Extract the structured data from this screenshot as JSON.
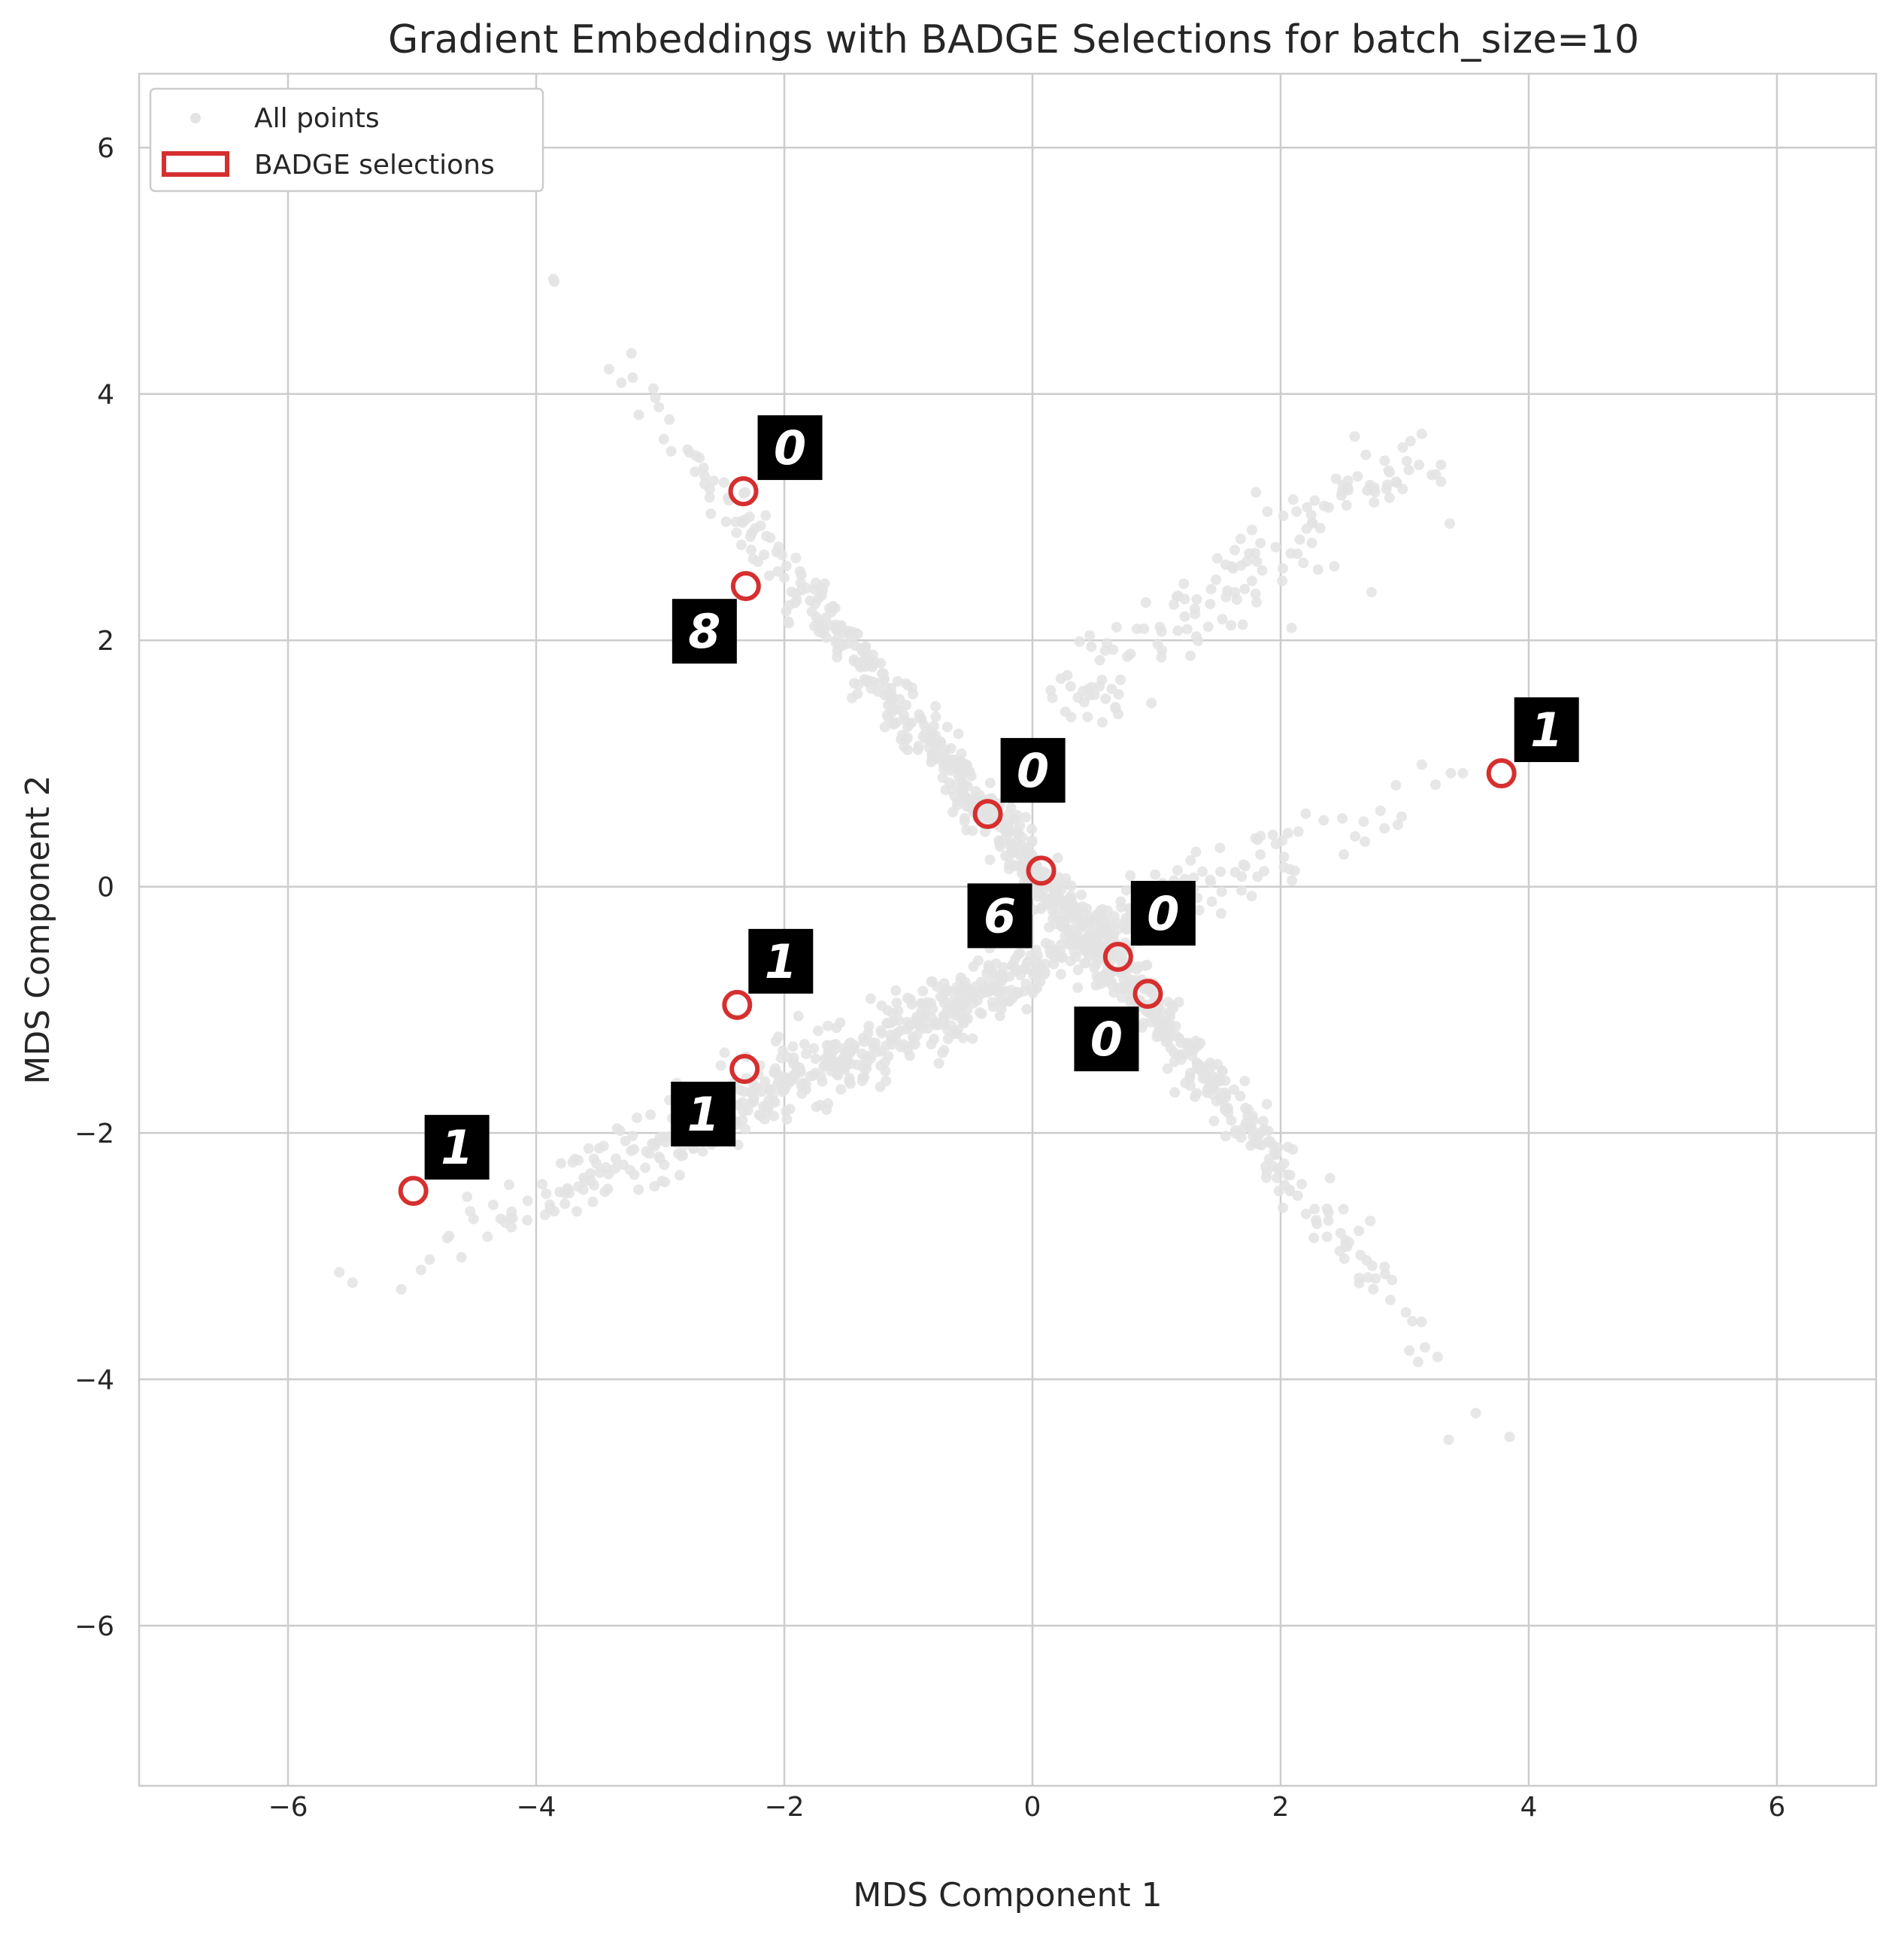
{
  "chart_data": {
    "type": "scatter",
    "title": "Gradient Embeddings with BADGE Selections for batch_size=10",
    "xlabel": "MDS Component 1",
    "ylabel": "MDS Component 2",
    "xlim": [
      -7.2,
      6.8
    ],
    "ylim": [
      -7.3,
      6.6
    ],
    "xticks": [
      -6,
      -4,
      -2,
      0,
      2,
      4,
      6
    ],
    "yticks": [
      -6,
      -4,
      -2,
      0,
      2,
      4,
      6
    ],
    "xtick_labels": [
      "−6",
      "−4",
      "−2",
      "0",
      "2",
      "4",
      "6"
    ],
    "ytick_labels": [
      "−6",
      "−4",
      "−2",
      "0",
      "2",
      "4",
      "6"
    ],
    "grid": true,
    "legend": {
      "placement": "top-left",
      "entries": [
        "All points",
        "BADGE selections"
      ]
    },
    "colors": {
      "all_points": "#e3e3e3",
      "selection": "#d62f2f",
      "grid": "#cccccc",
      "thumbnail_bg": "#000000",
      "thumbnail_digit": "#ffffff"
    },
    "series": [
      {
        "name": "All points",
        "kind": "point-cloud",
        "clusters": [
          {
            "from": [
              -3.9,
              4.9
            ],
            "to": [
              4.9,
              -5.8
            ]
          },
          {
            "from": [
              -5.6,
              -3.3
            ],
            "to": [
              5.2,
              1.8
            ]
          },
          {
            "from": [
              0.2,
              1.4
            ],
            "to": [
              3.2,
              3.6
            ]
          }
        ]
      },
      {
        "name": "BADGE selections",
        "points": [
          {
            "x": -2.33,
            "y": 3.21,
            "digit": "0"
          },
          {
            "x": -2.31,
            "y": 2.44,
            "digit": "8"
          },
          {
            "x": -0.36,
            "y": 0.59,
            "digit": "0"
          },
          {
            "x": 0.07,
            "y": 0.13,
            "digit": "6"
          },
          {
            "x": 0.69,
            "y": -0.57,
            "digit": "0"
          },
          {
            "x": 0.93,
            "y": -0.87,
            "digit": "0"
          },
          {
            "x": 3.78,
            "y": 0.92,
            "digit": "1"
          },
          {
            "x": -2.38,
            "y": -0.96,
            "digit": "1"
          },
          {
            "x": -2.32,
            "y": -1.48,
            "digit": "1"
          },
          {
            "x": -4.99,
            "y": -2.47,
            "digit": "1"
          }
        ]
      }
    ]
  }
}
